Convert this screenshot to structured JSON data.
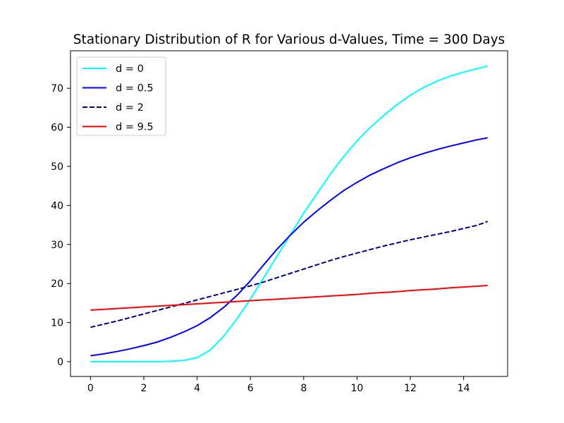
{
  "chart_data": {
    "type": "line",
    "title": "Stationary Distribution of R for Various d-Values, Time = 300 Days",
    "xlabel": "",
    "ylabel": "",
    "xlim": [
      -0.75,
      15.65
    ],
    "ylim": [
      -3.8,
      79.6
    ],
    "xticks": [
      0,
      2,
      4,
      6,
      8,
      10,
      12,
      14
    ],
    "yticks": [
      0,
      10,
      20,
      30,
      40,
      50,
      60,
      70
    ],
    "grid": false,
    "legend_position": "top-left",
    "x": [
      0,
      0.5,
      1,
      1.5,
      2,
      2.5,
      3,
      3.5,
      4,
      4.5,
      5,
      5.5,
      6,
      6.5,
      7,
      7.5,
      8,
      8.5,
      9,
      9.5,
      10,
      10.5,
      11,
      11.5,
      12,
      12.5,
      13,
      13.5,
      14,
      14.5,
      14.9
    ],
    "series": [
      {
        "name": "d = 0",
        "color": "#00ffff",
        "dash": "solid",
        "values": [
          0,
          0,
          0,
          0,
          0,
          0,
          0.1,
          0.3,
          1.0,
          3.0,
          6.5,
          11.0,
          16.0,
          21.5,
          27.0,
          32.5,
          38.0,
          43.0,
          48.0,
          52.5,
          56.5,
          60.0,
          63.0,
          65.8,
          68.2,
          70.2,
          71.8,
          73.1,
          74.1,
          75.0,
          75.7
        ]
      },
      {
        "name": "d = 0.5",
        "color": "#0000ff",
        "dash": "solid",
        "values": [
          1.5,
          2.0,
          2.6,
          3.3,
          4.1,
          5.0,
          6.2,
          7.6,
          9.2,
          11.3,
          13.9,
          17.0,
          20.7,
          24.8,
          28.8,
          32.4,
          35.7,
          38.6,
          41.3,
          43.8,
          45.9,
          47.8,
          49.4,
          50.9,
          52.2,
          53.3,
          54.3,
          55.2,
          56.0,
          56.8,
          57.3
        ]
      },
      {
        "name": "d = 2",
        "color": "#00008b",
        "dash": "dashed",
        "values": [
          8.8,
          9.6,
          10.4,
          11.3,
          12.2,
          13.1,
          14.0,
          14.9,
          15.8,
          16.7,
          17.6,
          18.5,
          19.4,
          20.4,
          21.5,
          22.6,
          23.7,
          24.8,
          25.9,
          26.9,
          27.8,
          28.7,
          29.6,
          30.4,
          31.2,
          31.9,
          32.6,
          33.3,
          34.1,
          34.9,
          35.9
        ]
      },
      {
        "name": "d = 9.5",
        "color": "#ff0000",
        "dash": "solid",
        "values": [
          13.2,
          13.4,
          13.6,
          13.8,
          14.0,
          14.2,
          14.4,
          14.6,
          14.8,
          15.0,
          15.2,
          15.4,
          15.6,
          15.8,
          16.0,
          16.2,
          16.4,
          16.6,
          16.8,
          17.0,
          17.2,
          17.5,
          17.7,
          17.9,
          18.2,
          18.4,
          18.6,
          18.9,
          19.1,
          19.3,
          19.5
        ]
      }
    ]
  }
}
